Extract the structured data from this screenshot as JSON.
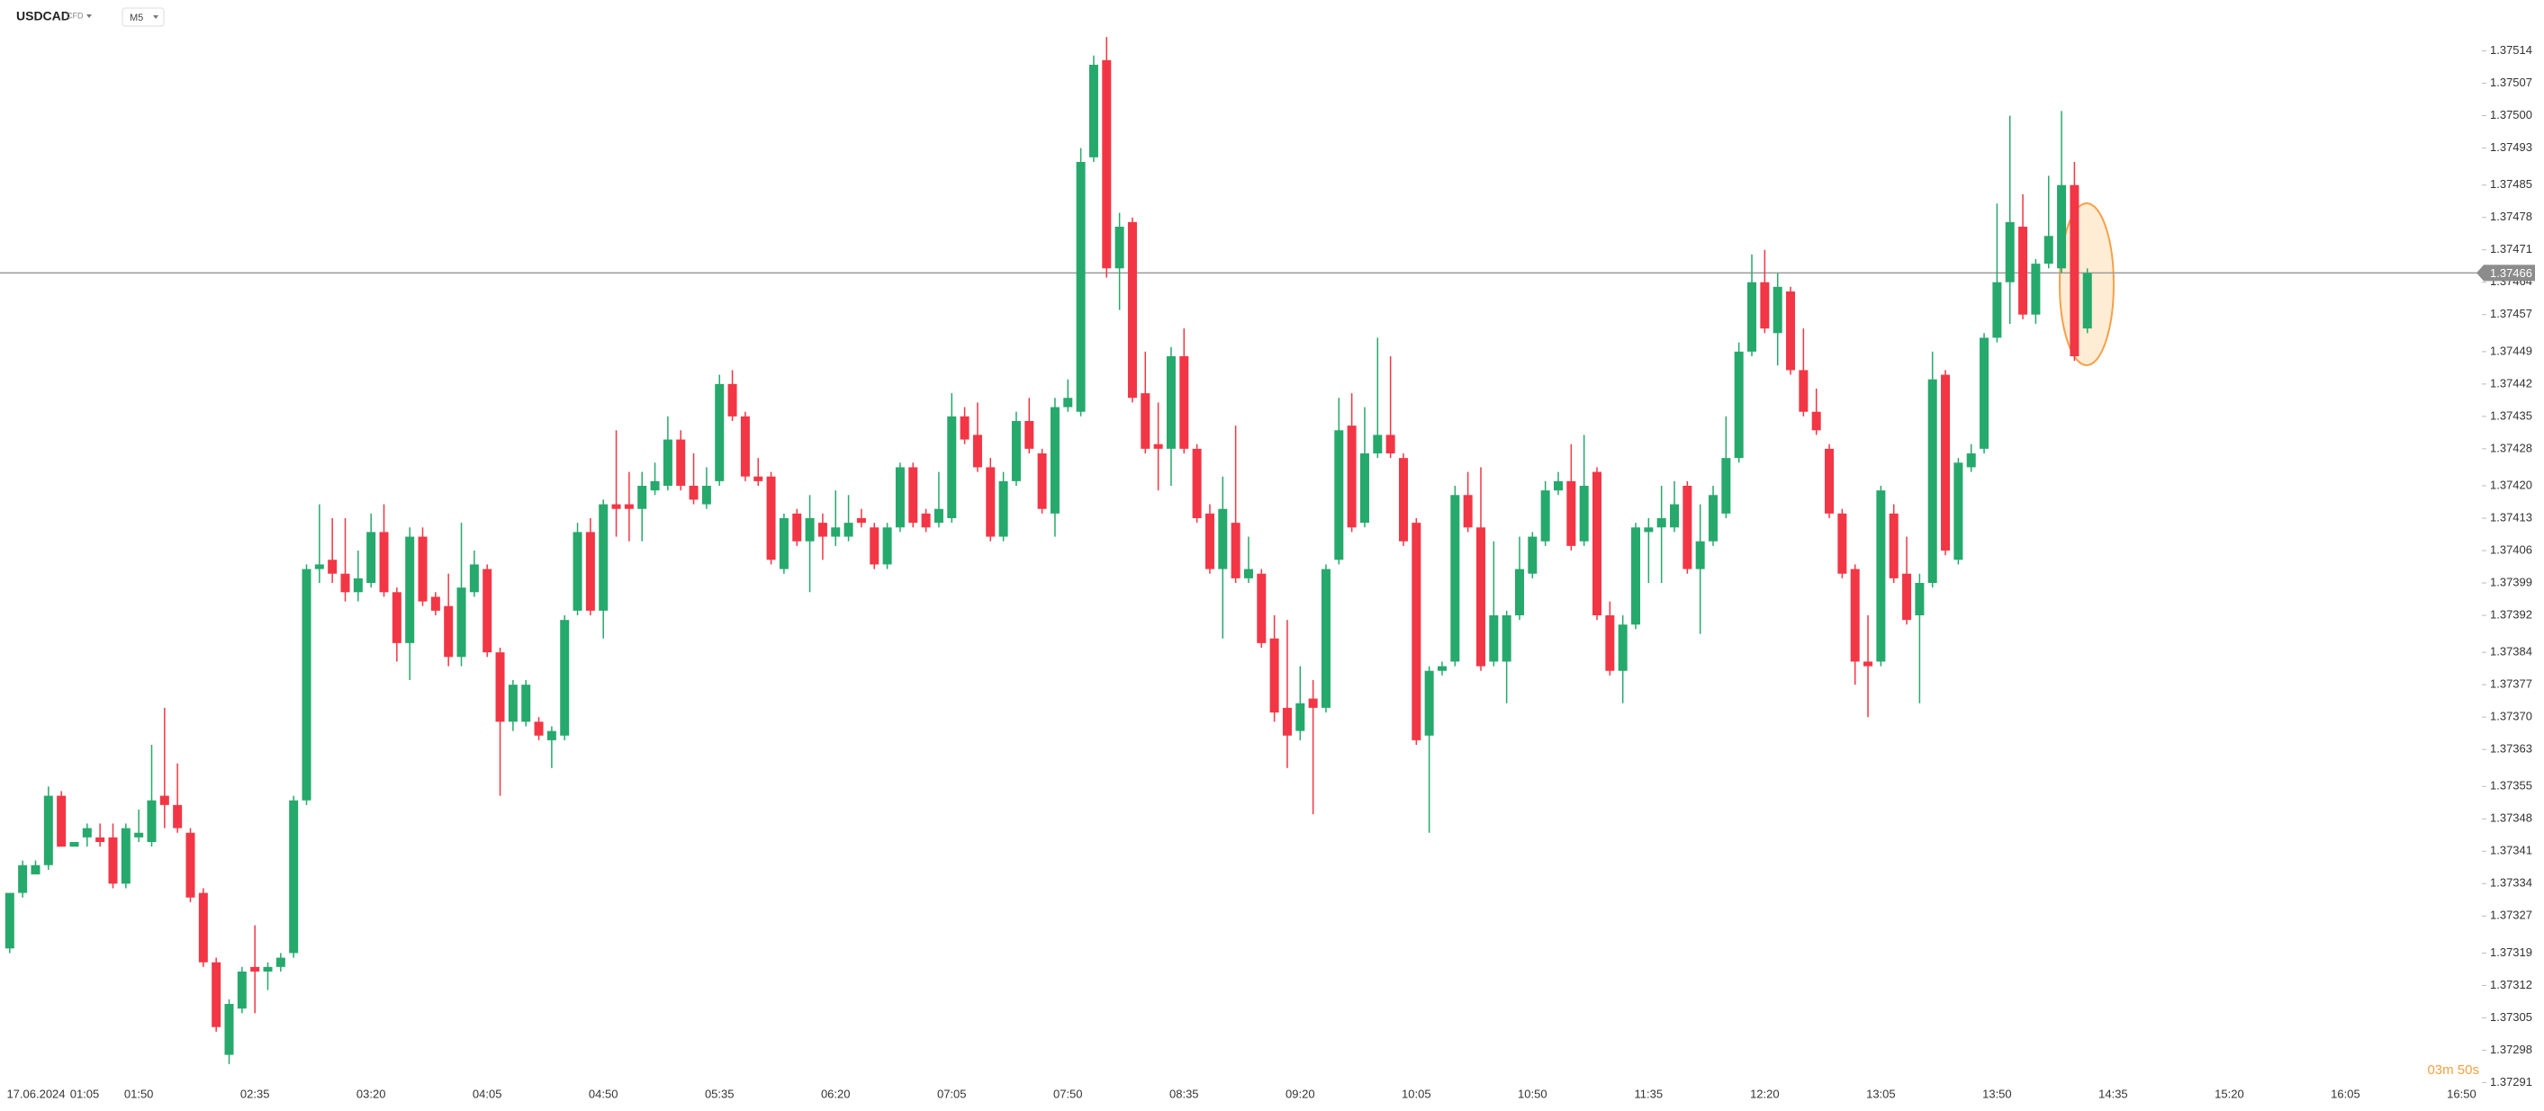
{
  "chart_data": {
    "type": "candlestick",
    "symbol": "USDCAD",
    "instrument_type": "CFD",
    "timeframe": "M5",
    "countdown": "03m 50s",
    "current_price": 1.37466,
    "colors": {
      "up": "#26a96c",
      "down": "#f23645"
    },
    "ylim": [
      1.37287,
      1.37525
    ],
    "yticks": [
      1.37514,
      1.37507,
      {
        "value": 1.375,
        "label": "1.37500"
      },
      1.37493,
      1.37485,
      1.37478,
      1.37471,
      1.37464,
      1.37457,
      1.37449,
      1.37442,
      1.37435,
      1.37428,
      {
        "value": 1.3742,
        "label": "1.37420"
      },
      1.37413,
      1.37406,
      1.37399,
      1.37392,
      1.37384,
      1.37377,
      {
        "value": 1.3737,
        "label": "1.37370"
      },
      1.37363,
      1.37355,
      1.37348,
      1.37341,
      1.37334,
      1.37327,
      1.37319,
      1.37312,
      1.37305,
      1.37298,
      1.37291
    ],
    "xtick_labels": [
      "17.06.2024",
      "01:05",
      "01:50",
      "02:35",
      "03:20",
      "04:05",
      "04:50",
      "05:35",
      "06:20",
      "07:05",
      "07:50",
      "08:35",
      "09:20",
      "10:05",
      "10:50",
      "11:35",
      "12:20",
      "13:05",
      "13:50",
      "14:35",
      "15:20",
      "16:05",
      "16:50"
    ],
    "open": [
      1.3732,
      1.37332,
      1.37336,
      1.37338,
      1.37353,
      1.37342,
      1.37344,
      1.37344,
      1.37344,
      1.37334,
      1.37344,
      1.37343,
      1.37353,
      1.37351,
      1.37345,
      1.37332,
      1.37317,
      1.37297,
      1.37307,
      1.37316,
      1.37315,
      1.37316,
      1.37319,
      1.37352,
      1.37402,
      1.37404,
      1.37401,
      1.37397,
      1.37399,
      1.3741,
      1.37397,
      1.37386,
      1.37409,
      1.37396,
      1.37394,
      1.37383,
      1.37397,
      1.37402,
      1.37384,
      1.37369,
      1.37369,
      1.37369,
      1.37365,
      1.37366,
      1.37393,
      1.3741,
      1.37393,
      1.37416,
      1.37416,
      1.37415,
      1.37419,
      1.3742,
      1.3743,
      1.3742,
      1.37416,
      1.37421,
      1.37442,
      1.37435,
      1.37422,
      1.37422,
      1.37402,
      1.37414,
      1.37408,
      1.37412,
      1.37409,
      1.37409,
      1.37413,
      1.37411,
      1.37403,
      1.37411,
      1.37424,
      1.37414,
      1.37412,
      1.37413,
      1.37435,
      1.37431,
      1.37424,
      1.37409,
      1.37421,
      1.37434,
      1.37427,
      1.37414,
      1.37437,
      1.37436,
      1.37491,
      1.37512,
      1.37467,
      1.37477,
      1.3744,
      1.37429,
      1.37428,
      1.37448,
      1.37428,
      1.37414,
      1.37402,
      1.37412,
      1.374,
      1.37401,
      1.37387,
      1.37372,
      1.37367,
      1.37374,
      1.37372,
      1.37404,
      1.37433,
      1.37412,
      1.37427,
      1.37431,
      1.37426,
      1.37412,
      1.37366,
      1.3738,
      1.37382,
      1.37418,
      1.37411,
      1.37382,
      1.37382,
      1.37392,
      1.37401,
      1.37408,
      1.37419,
      1.37421,
      1.37408,
      1.37423,
      1.37392,
      1.3738,
      1.3739,
      1.3741,
      1.37411,
      1.37411,
      1.3742,
      1.37402,
      1.37408,
      1.37414,
      1.37426,
      1.37449,
      1.37464,
      1.37453,
      1.37462,
      1.37445,
      1.37436,
      1.37428,
      1.37414,
      1.37402,
      1.37382,
      1.37382,
      1.37414,
      1.37401,
      1.37392,
      1.37399,
      1.37444,
      1.37404,
      1.37424,
      1.37428,
      1.37452,
      1.37464,
      1.37476,
      1.37457,
      1.37468,
      1.37467,
      1.37485,
      1.37454
    ],
    "high": [
      1.37332,
      1.37339,
      1.37339,
      1.37355,
      1.37354,
      1.37343,
      1.37347,
      1.37347,
      1.37347,
      1.37347,
      1.3735,
      1.37364,
      1.37372,
      1.3736,
      1.37346,
      1.37333,
      1.37318,
      1.37309,
      1.37316,
      1.37325,
      1.37317,
      1.37319,
      1.37353,
      1.37403,
      1.37416,
      1.37413,
      1.37413,
      1.37406,
      1.37414,
      1.37416,
      1.37398,
      1.37411,
      1.37411,
      1.37397,
      1.37401,
      1.37412,
      1.37406,
      1.37403,
      1.37385,
      1.37378,
      1.37378,
      1.3737,
      1.37368,
      1.37392,
      1.37412,
      1.37413,
      1.37417,
      1.37432,
      1.37423,
      1.37423,
      1.37425,
      1.37435,
      1.37432,
      1.37427,
      1.37424,
      1.37444,
      1.37445,
      1.37436,
      1.37426,
      1.37423,
      1.37414,
      1.37415,
      1.37418,
      1.37414,
      1.37419,
      1.37418,
      1.37415,
      1.37412,
      1.37412,
      1.37425,
      1.37425,
      1.37415,
      1.37423,
      1.3744,
      1.37437,
      1.37438,
      1.37426,
      1.37423,
      1.37436,
      1.37439,
      1.37428,
      1.37439,
      1.37443,
      1.37493,
      1.37513,
      1.37517,
      1.37479,
      1.37478,
      1.37449,
      1.37438,
      1.3745,
      1.37454,
      1.37429,
      1.37416,
      1.37422,
      1.37433,
      1.37409,
      1.37402,
      1.37392,
      1.37391,
      1.37381,
      1.37378,
      1.37403,
      1.37439,
      1.3744,
      1.37437,
      1.37452,
      1.37448,
      1.37427,
      1.37413,
      1.37381,
      1.37382,
      1.3742,
      1.37423,
      1.37424,
      1.37408,
      1.37393,
      1.37409,
      1.3741,
      1.37421,
      1.37423,
      1.37429,
      1.37431,
      1.37424,
      1.37395,
      1.37392,
      1.37412,
      1.37413,
      1.3742,
      1.37421,
      1.37421,
      1.37416,
      1.3742,
      1.37435,
      1.37451,
      1.3747,
      1.37471,
      1.37466,
      1.37463,
      1.37454,
      1.37441,
      1.37429,
      1.37415,
      1.37403,
      1.37392,
      1.3742,
      1.37416,
      1.37409,
      1.37401,
      1.37449,
      1.37445,
      1.37426,
      1.37429,
      1.37453,
      1.37481,
      1.375,
      1.37483,
      1.37469,
      1.37487,
      1.37501,
      1.3749,
      1.37467
    ],
    "low": [
      1.37319,
      1.37331,
      1.37336,
      1.37337,
      1.37342,
      1.37342,
      1.37342,
      1.37342,
      1.37333,
      1.37333,
      1.37343,
      1.37342,
      1.37346,
      1.37345,
      1.3733,
      1.37316,
      1.37302,
      1.37295,
      1.37306,
      1.37306,
      1.37311,
      1.37315,
      1.37318,
      1.37351,
      1.37399,
      1.37399,
      1.37395,
      1.37395,
      1.37398,
      1.37396,
      1.37382,
      1.37378,
      1.37394,
      1.37392,
      1.37381,
      1.37381,
      1.37396,
      1.37383,
      1.37353,
      1.37367,
      1.37368,
      1.37365,
      1.37359,
      1.37365,
      1.37392,
      1.37392,
      1.37387,
      1.37409,
      1.37408,
      1.37408,
      1.37418,
      1.37419,
      1.37419,
      1.37416,
      1.37415,
      1.3742,
      1.37434,
      1.37421,
      1.3742,
      1.37403,
      1.37401,
      1.37407,
      1.37397,
      1.37404,
      1.37407,
      1.37408,
      1.37411,
      1.37402,
      1.37402,
      1.3741,
      1.37411,
      1.3741,
      1.37411,
      1.37412,
      1.37429,
      1.37423,
      1.37408,
      1.37408,
      1.3742,
      1.37427,
      1.37414,
      1.37409,
      1.37436,
      1.37435,
      1.3749,
      1.37465,
      1.37458,
      1.37438,
      1.37427,
      1.37419,
      1.3742,
      1.37427,
      1.37412,
      1.37401,
      1.37387,
      1.37399,
      1.37399,
      1.37385,
      1.37369,
      1.37359,
      1.37365,
      1.37349,
      1.37371,
      1.37403,
      1.3741,
      1.37411,
      1.37426,
      1.37426,
      1.37407,
      1.37364,
      1.37345,
      1.37379,
      1.37381,
      1.3741,
      1.3738,
      1.37381,
      1.37373,
      1.37391,
      1.374,
      1.37407,
      1.37418,
      1.37406,
      1.37407,
      1.37391,
      1.37379,
      1.37373,
      1.37389,
      1.37399,
      1.37399,
      1.3741,
      1.37401,
      1.37388,
      1.37407,
      1.37413,
      1.37425,
      1.37448,
      1.37453,
      1.37446,
      1.37444,
      1.37435,
      1.37431,
      1.37413,
      1.374,
      1.37377,
      1.3737,
      1.37381,
      1.37399,
      1.3739,
      1.37373,
      1.37398,
      1.37405,
      1.37403,
      1.37423,
      1.37427,
      1.37451,
      1.37455,
      1.37456,
      1.37455,
      1.37467,
      1.37466,
      1.37447,
      1.37453
    ],
    "close": [
      1.37332,
      1.37338,
      1.37338,
      1.37353,
      1.37342,
      1.37343,
      1.37346,
      1.37343,
      1.37334,
      1.37346,
      1.37345,
      1.37352,
      1.37351,
      1.37346,
      1.37331,
      1.37317,
      1.37303,
      1.37308,
      1.37315,
      1.37315,
      1.37316,
      1.37318,
      1.37352,
      1.37402,
      1.37403,
      1.37401,
      1.37397,
      1.374,
      1.3741,
      1.37397,
      1.37386,
      1.37409,
      1.37395,
      1.37393,
      1.37383,
      1.37398,
      1.37403,
      1.37384,
      1.37369,
      1.37377,
      1.37377,
      1.37366,
      1.37367,
      1.37391,
      1.3741,
      1.37393,
      1.37416,
      1.37415,
      1.37415,
      1.3742,
      1.37421,
      1.3743,
      1.3742,
      1.37417,
      1.3742,
      1.37442,
      1.37435,
      1.37422,
      1.37421,
      1.37404,
      1.37413,
      1.37408,
      1.37413,
      1.37409,
      1.37411,
      1.37412,
      1.37412,
      1.37403,
      1.37411,
      1.37424,
      1.37412,
      1.37411,
      1.37415,
      1.37435,
      1.3743,
      1.37424,
      1.37409,
      1.37421,
      1.37434,
      1.37428,
      1.37415,
      1.37437,
      1.37439,
      1.3749,
      1.37511,
      1.37467,
      1.37476,
      1.37439,
      1.37428,
      1.37428,
      1.37448,
      1.37428,
      1.37413,
      1.37402,
      1.37415,
      1.374,
      1.37402,
      1.37386,
      1.37371,
      1.37366,
      1.37373,
      1.37372,
      1.37402,
      1.37432,
      1.37411,
      1.37427,
      1.37431,
      1.37427,
      1.37408,
      1.37365,
      1.3738,
      1.37381,
      1.37418,
      1.37411,
      1.37381,
      1.37392,
      1.37392,
      1.37402,
      1.37409,
      1.37419,
      1.37421,
      1.37407,
      1.3742,
      1.37392,
      1.3738,
      1.3739,
      1.37411,
      1.37411,
      1.37413,
      1.37416,
      1.37402,
      1.37408,
      1.37418,
      1.37426,
      1.37449,
      1.37464,
      1.37454,
      1.37463,
      1.37445,
      1.37436,
      1.37432,
      1.37414,
      1.37401,
      1.37382,
      1.37381,
      1.37419,
      1.374,
      1.37391,
      1.37399,
      1.37443,
      1.37406,
      1.37425,
      1.37427,
      1.37452,
      1.37464,
      1.37477,
      1.37457,
      1.37468,
      1.37474,
      1.37485,
      1.37448,
      1.37466
    ]
  }
}
